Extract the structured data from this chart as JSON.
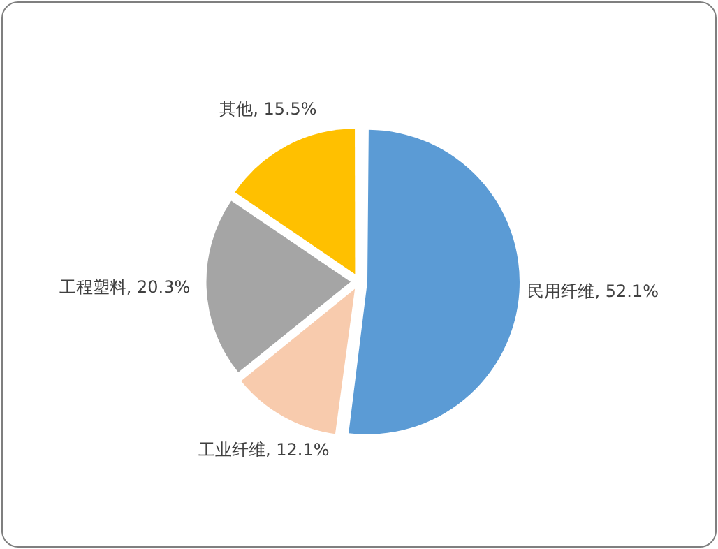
{
  "chart_data": {
    "type": "pie",
    "categories": [
      "民用纤维",
      "工业纤维",
      "工程塑料",
      "其他"
    ],
    "values": [
      52.1,
      12.1,
      20.3,
      15.5
    ],
    "colors": [
      "#5b9bd5",
      "#f8cbad",
      "#a5a5a5",
      "#ffc000"
    ],
    "value_labels": [
      "52.1%",
      "12.1%",
      "20.3%",
      "15.5%"
    ],
    "legend": false
  }
}
